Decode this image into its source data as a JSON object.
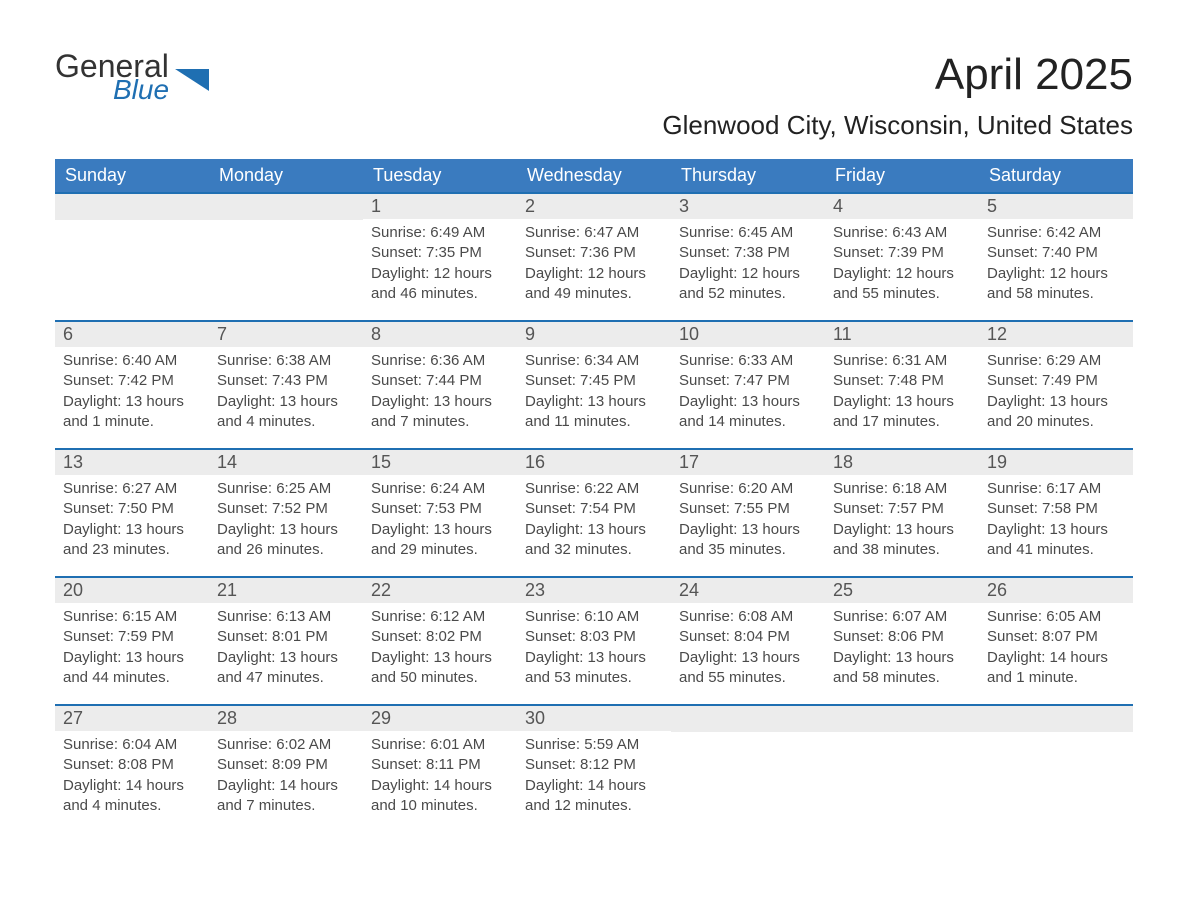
{
  "brand": {
    "line1": "General",
    "line2": "Blue"
  },
  "title": "April 2025",
  "location": "Glenwood City, Wisconsin, United States",
  "colors": {
    "header_blue": "#3a7bbf",
    "accent_blue": "#1f6fb2",
    "date_bg": "#ececec",
    "text": "#333333"
  },
  "weekdays": [
    "Sunday",
    "Monday",
    "Tuesday",
    "Wednesday",
    "Thursday",
    "Friday",
    "Saturday"
  ],
  "weeks": [
    [
      {
        "n": "",
        "sr": "",
        "ss": "",
        "dl": ""
      },
      {
        "n": "",
        "sr": "",
        "ss": "",
        "dl": ""
      },
      {
        "n": "1",
        "sr": "Sunrise: 6:49 AM",
        "ss": "Sunset: 7:35 PM",
        "dl": "Daylight: 12 hours and 46 minutes."
      },
      {
        "n": "2",
        "sr": "Sunrise: 6:47 AM",
        "ss": "Sunset: 7:36 PM",
        "dl": "Daylight: 12 hours and 49 minutes."
      },
      {
        "n": "3",
        "sr": "Sunrise: 6:45 AM",
        "ss": "Sunset: 7:38 PM",
        "dl": "Daylight: 12 hours and 52 minutes."
      },
      {
        "n": "4",
        "sr": "Sunrise: 6:43 AM",
        "ss": "Sunset: 7:39 PM",
        "dl": "Daylight: 12 hours and 55 minutes."
      },
      {
        "n": "5",
        "sr": "Sunrise: 6:42 AM",
        "ss": "Sunset: 7:40 PM",
        "dl": "Daylight: 12 hours and 58 minutes."
      }
    ],
    [
      {
        "n": "6",
        "sr": "Sunrise: 6:40 AM",
        "ss": "Sunset: 7:42 PM",
        "dl": "Daylight: 13 hours and 1 minute."
      },
      {
        "n": "7",
        "sr": "Sunrise: 6:38 AM",
        "ss": "Sunset: 7:43 PM",
        "dl": "Daylight: 13 hours and 4 minutes."
      },
      {
        "n": "8",
        "sr": "Sunrise: 6:36 AM",
        "ss": "Sunset: 7:44 PM",
        "dl": "Daylight: 13 hours and 7 minutes."
      },
      {
        "n": "9",
        "sr": "Sunrise: 6:34 AM",
        "ss": "Sunset: 7:45 PM",
        "dl": "Daylight: 13 hours and 11 minutes."
      },
      {
        "n": "10",
        "sr": "Sunrise: 6:33 AM",
        "ss": "Sunset: 7:47 PM",
        "dl": "Daylight: 13 hours and 14 minutes."
      },
      {
        "n": "11",
        "sr": "Sunrise: 6:31 AM",
        "ss": "Sunset: 7:48 PM",
        "dl": "Daylight: 13 hours and 17 minutes."
      },
      {
        "n": "12",
        "sr": "Sunrise: 6:29 AM",
        "ss": "Sunset: 7:49 PM",
        "dl": "Daylight: 13 hours and 20 minutes."
      }
    ],
    [
      {
        "n": "13",
        "sr": "Sunrise: 6:27 AM",
        "ss": "Sunset: 7:50 PM",
        "dl": "Daylight: 13 hours and 23 minutes."
      },
      {
        "n": "14",
        "sr": "Sunrise: 6:25 AM",
        "ss": "Sunset: 7:52 PM",
        "dl": "Daylight: 13 hours and 26 minutes."
      },
      {
        "n": "15",
        "sr": "Sunrise: 6:24 AM",
        "ss": "Sunset: 7:53 PM",
        "dl": "Daylight: 13 hours and 29 minutes."
      },
      {
        "n": "16",
        "sr": "Sunrise: 6:22 AM",
        "ss": "Sunset: 7:54 PM",
        "dl": "Daylight: 13 hours and 32 minutes."
      },
      {
        "n": "17",
        "sr": "Sunrise: 6:20 AM",
        "ss": "Sunset: 7:55 PM",
        "dl": "Daylight: 13 hours and 35 minutes."
      },
      {
        "n": "18",
        "sr": "Sunrise: 6:18 AM",
        "ss": "Sunset: 7:57 PM",
        "dl": "Daylight: 13 hours and 38 minutes."
      },
      {
        "n": "19",
        "sr": "Sunrise: 6:17 AM",
        "ss": "Sunset: 7:58 PM",
        "dl": "Daylight: 13 hours and 41 minutes."
      }
    ],
    [
      {
        "n": "20",
        "sr": "Sunrise: 6:15 AM",
        "ss": "Sunset: 7:59 PM",
        "dl": "Daylight: 13 hours and 44 minutes."
      },
      {
        "n": "21",
        "sr": "Sunrise: 6:13 AM",
        "ss": "Sunset: 8:01 PM",
        "dl": "Daylight: 13 hours and 47 minutes."
      },
      {
        "n": "22",
        "sr": "Sunrise: 6:12 AM",
        "ss": "Sunset: 8:02 PM",
        "dl": "Daylight: 13 hours and 50 minutes."
      },
      {
        "n": "23",
        "sr": "Sunrise: 6:10 AM",
        "ss": "Sunset: 8:03 PM",
        "dl": "Daylight: 13 hours and 53 minutes."
      },
      {
        "n": "24",
        "sr": "Sunrise: 6:08 AM",
        "ss": "Sunset: 8:04 PM",
        "dl": "Daylight: 13 hours and 55 minutes."
      },
      {
        "n": "25",
        "sr": "Sunrise: 6:07 AM",
        "ss": "Sunset: 8:06 PM",
        "dl": "Daylight: 13 hours and 58 minutes."
      },
      {
        "n": "26",
        "sr": "Sunrise: 6:05 AM",
        "ss": "Sunset: 8:07 PM",
        "dl": "Daylight: 14 hours and 1 minute."
      }
    ],
    [
      {
        "n": "27",
        "sr": "Sunrise: 6:04 AM",
        "ss": "Sunset: 8:08 PM",
        "dl": "Daylight: 14 hours and 4 minutes."
      },
      {
        "n": "28",
        "sr": "Sunrise: 6:02 AM",
        "ss": "Sunset: 8:09 PM",
        "dl": "Daylight: 14 hours and 7 minutes."
      },
      {
        "n": "29",
        "sr": "Sunrise: 6:01 AM",
        "ss": "Sunset: 8:11 PM",
        "dl": "Daylight: 14 hours and 10 minutes."
      },
      {
        "n": "30",
        "sr": "Sunrise: 5:59 AM",
        "ss": "Sunset: 8:12 PM",
        "dl": "Daylight: 14 hours and 12 minutes."
      },
      {
        "n": "",
        "sr": "",
        "ss": "",
        "dl": ""
      },
      {
        "n": "",
        "sr": "",
        "ss": "",
        "dl": ""
      },
      {
        "n": "",
        "sr": "",
        "ss": "",
        "dl": ""
      }
    ]
  ]
}
